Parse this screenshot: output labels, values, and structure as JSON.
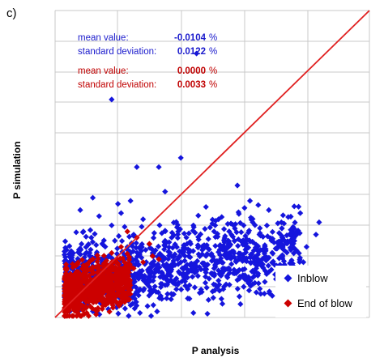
{
  "panel_label": "c)",
  "stats": {
    "blue_mean_label": "mean value:",
    "blue_mean_value": "-0.0104",
    "blue_mean_unit": "%",
    "blue_sd_label": "standard deviation:",
    "blue_sd_value": "0.0122",
    "blue_sd_unit": "%",
    "red_mean_label": "mean value:",
    "red_mean_value": "0.0000",
    "red_mean_unit": "%",
    "red_sd_label": "standard deviation:",
    "red_sd_value": "0.0033",
    "red_sd_unit": "%"
  },
  "colors": {
    "inblow": "#1515dd",
    "end_of_blow": "#cc0000",
    "diagonal": "#e02020",
    "grid": "#c8c8c8",
    "stat_blue": "#1a1acc",
    "stat_red": "#c00000"
  },
  "chart_data": {
    "type": "scatter",
    "xlabel": "P analysis",
    "ylabel": "P simulation",
    "xlim": [
      0,
      100
    ],
    "ylim": [
      0,
      100
    ],
    "grid": true,
    "ticks_labeled": false,
    "reference_line": {
      "type": "y=x",
      "from": [
        0,
        0
      ],
      "to": [
        100,
        100
      ]
    },
    "legend": {
      "position": "bottom-right",
      "entries": [
        "Inblow",
        "End of blow"
      ]
    },
    "series": [
      {
        "name": "Inblow",
        "marker": "diamond",
        "points": [
          [
            45,
            86
          ],
          [
            18,
            71
          ],
          [
            40,
            52
          ],
          [
            33,
            49
          ],
          [
            26,
            49
          ],
          [
            35,
            41
          ],
          [
            12,
            39
          ],
          [
            8,
            35
          ],
          [
            14,
            33
          ],
          [
            18,
            30
          ],
          [
            21,
            34
          ],
          [
            28,
            32
          ],
          [
            20,
            37
          ],
          [
            24,
            38
          ],
          [
            58,
            43
          ],
          [
            62,
            38
          ],
          [
            48,
            36
          ],
          [
            52,
            32
          ],
          [
            44,
            30
          ],
          [
            68,
            35
          ],
          [
            72,
            31
          ],
          [
            76,
            29
          ],
          [
            65,
            27
          ],
          [
            78,
            34
          ],
          [
            83,
            27
          ],
          [
            84,
            31
          ],
          [
            80,
            23
          ],
          [
            35,
            25
          ],
          [
            41,
            22
          ],
          [
            55,
            25
          ],
          [
            38,
            12
          ],
          [
            52,
            12
          ],
          [
            60,
            10
          ],
          [
            70,
            14
          ],
          [
            66,
            22
          ],
          [
            72,
            20
          ],
          [
            30,
            10
          ],
          [
            46,
            8
          ],
          [
            12,
            2
          ],
          [
            24,
            4
          ],
          [
            17,
            20
          ],
          [
            22,
            16
          ],
          [
            10,
            12
          ],
          [
            5,
            14
          ],
          [
            7,
            18
          ],
          [
            11,
            21
          ],
          [
            15,
            24
          ],
          [
            9,
            28
          ],
          [
            25,
            27
          ],
          [
            29,
            18
          ],
          [
            60,
            30
          ],
          [
            56,
            20
          ],
          [
            75,
            22
          ],
          [
            79,
            18
          ],
          [
            73,
            25
          ],
          [
            45,
            15
          ],
          [
            40,
            18
          ],
          [
            33,
            15
          ],
          [
            50,
            14
          ],
          [
            64,
            16
          ],
          [
            58,
            15
          ],
          [
            53,
            18
          ],
          [
            48,
            20
          ],
          [
            42,
            24
          ],
          [
            37,
            20
          ],
          [
            31,
            21
          ],
          [
            27,
            23
          ],
          [
            23,
            22
          ],
          [
            19,
            25
          ],
          [
            16,
            16
          ],
          [
            13,
            14
          ]
        ],
        "cluster": {
          "count": 1100,
          "x_range": [
            3,
            78
          ],
          "y_center_at_x": [
            [
              3,
              13
            ],
            [
              20,
              14
            ],
            [
              40,
              17
            ],
            [
              60,
              20
            ],
            [
              78,
              22
            ]
          ],
          "y_spread": 6
        }
      },
      {
        "name": "End of blow",
        "marker": "diamond",
        "points": [
          [
            5,
            14
          ],
          [
            6,
            9
          ],
          [
            8,
            6
          ],
          [
            11,
            7
          ],
          [
            14,
            8
          ],
          [
            17,
            10
          ],
          [
            19,
            13
          ],
          [
            22,
            14
          ],
          [
            25,
            16
          ],
          [
            28,
            18
          ],
          [
            31,
            20
          ],
          [
            21,
            23
          ],
          [
            26,
            26
          ],
          [
            23,
            28
          ],
          [
            30,
            24
          ],
          [
            33,
            19
          ],
          [
            4,
            10
          ],
          [
            10,
            11
          ],
          [
            13,
            13
          ],
          [
            16,
            15
          ],
          [
            9,
            17
          ],
          [
            12,
            19
          ],
          [
            18,
            21
          ]
        ],
        "cluster": {
          "count": 700,
          "x_range": [
            3,
            24
          ],
          "y_center_at_x": [
            [
              3,
              8
            ],
            [
              12,
              10
            ],
            [
              24,
              13
            ]
          ],
          "y_spread": 4
        }
      }
    ]
  }
}
